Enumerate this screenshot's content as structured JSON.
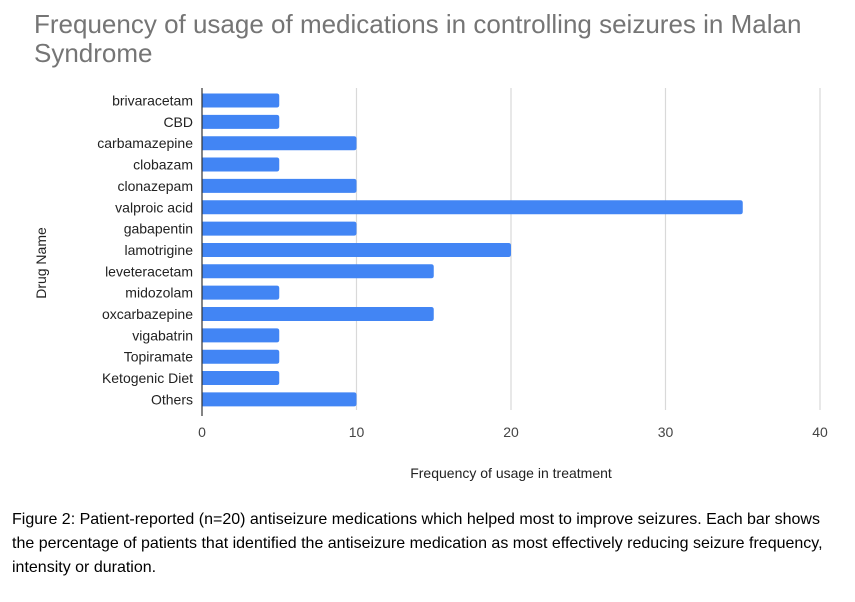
{
  "chart_data": {
    "type": "bar",
    "orientation": "horizontal",
    "title": "Frequency of usage of medications in controlling seizures in Malan Syndrome",
    "xlabel": "Frequency of usage in treatment",
    "ylabel": "Drug Name",
    "xlim": [
      0,
      40
    ],
    "xticks": [
      0,
      10,
      20,
      30,
      40
    ],
    "grid": true,
    "legend": "none",
    "bar_color": "#4285f4",
    "categories": [
      "brivaracetam",
      "CBD",
      "carbamazepine",
      "clobazam",
      "clonazepam",
      "valproic acid",
      "gabapentin",
      "lamotrigine",
      "leveteracetam",
      "midozolam",
      "oxcarbazepine",
      "vigabatrin",
      "Topiramate",
      "Ketogenic Diet",
      "Others"
    ],
    "values": [
      5,
      5,
      10,
      5,
      10,
      35,
      10,
      20,
      15,
      5,
      15,
      5,
      5,
      5,
      10
    ]
  },
  "caption": "Figure 2: Patient-reported (n=20) antiseizure medications which helped most to improve seizures. Each bar shows the percentage of patients that identified the antiseizure medication as most effectively reducing seizure frequency, intensity or duration."
}
